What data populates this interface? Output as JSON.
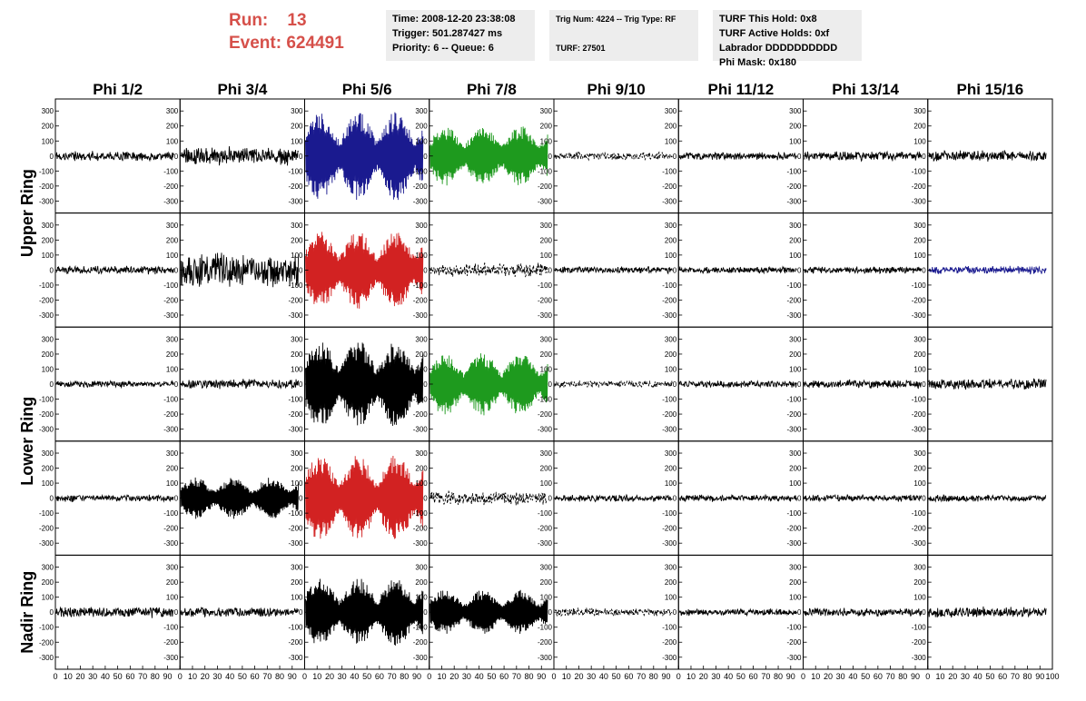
{
  "header": {
    "run_label": "Run:",
    "run_value": "13",
    "event_label": "Event:",
    "event_value": "624491",
    "accent_color": "#d6504a"
  },
  "info_boxes": {
    "time": [
      "Time: 2008-12-20 23:38:08",
      "Trigger: 501.287427 ms",
      "Priority: 6 -- Queue: 6"
    ],
    "trig": [
      "Trig Num: 4224 -- Trig Type: RF",
      "",
      "TURF: 27501"
    ],
    "turf": [
      "TURF This Hold: 0x8",
      "TURF Active Holds: 0xf",
      "Labrador DDDDDDDDDD",
      "Phi Mask: 0x180"
    ]
  },
  "chart_data": {
    "type": "line",
    "title": "",
    "column_labels": [
      "Phi 1/2",
      "Phi 3/4",
      "Phi 5/6",
      "Phi 7/8",
      "Phi 9/10",
      "Phi 11/12",
      "Phi 13/14",
      "Phi 15/16"
    ],
    "ring_labels": [
      {
        "text": "Upper Ring",
        "rows": [
          0,
          1
        ]
      },
      {
        "text": "Lower Ring",
        "rows": [
          2,
          3
        ]
      },
      {
        "text": "Nadir Ring",
        "rows": [
          4,
          4
        ]
      }
    ],
    "ylim": [
      -380,
      380
    ],
    "yticks": [
      -300,
      -200,
      -100,
      0,
      100,
      200,
      300
    ],
    "xlim": [
      0,
      100
    ],
    "xticks": [
      0,
      10,
      20,
      30,
      40,
      50,
      60,
      70,
      80,
      90,
      100
    ],
    "xtick_labels": [
      "0",
      "10",
      "20",
      "30",
      "40",
      "50",
      "60",
      "70",
      "80",
      "90",
      "100"
    ],
    "colors": {
      "black": "#000000",
      "blue": "#1a1a8f",
      "green": "#1e9a1e",
      "red": "#d22222"
    },
    "panels": [
      [
        {
          "color": "black",
          "amp": 35,
          "style": "solid"
        },
        {
          "color": "black",
          "amp": 70,
          "style": "solid"
        },
        {
          "color": "blue",
          "amp": 300,
          "style": "solid"
        },
        {
          "color": "green",
          "amp": 200,
          "style": "solid"
        },
        {
          "color": "black",
          "amp": 30,
          "style": "dashed"
        },
        {
          "color": "black",
          "amp": 28,
          "style": "solid"
        },
        {
          "color": "black",
          "amp": 35,
          "style": "solid"
        },
        {
          "color": "black",
          "amp": 40,
          "style": "solid"
        }
      ],
      [
        {
          "color": "black",
          "amp": 30,
          "style": "solid"
        },
        {
          "color": "black",
          "amp": 120,
          "style": "solid"
        },
        {
          "color": "red",
          "amp": 260,
          "style": "solid"
        },
        {
          "color": "black",
          "amp": 50,
          "style": "dashed"
        },
        {
          "color": "black",
          "amp": 25,
          "style": "solid"
        },
        {
          "color": "black",
          "amp": 25,
          "style": "solid"
        },
        {
          "color": "black",
          "amp": 25,
          "style": "solid"
        },
        {
          "color": "blue",
          "amp": 30,
          "style": "solid"
        }
      ],
      [
        {
          "color": "black",
          "amp": 25,
          "style": "solid"
        },
        {
          "color": "black",
          "amp": 35,
          "style": "solid"
        },
        {
          "color": "black",
          "amp": 290,
          "style": "solid"
        },
        {
          "color": "green",
          "amp": 210,
          "style": "solid"
        },
        {
          "color": "black",
          "amp": 25,
          "style": "dashed"
        },
        {
          "color": "black",
          "amp": 25,
          "style": "solid"
        },
        {
          "color": "black",
          "amp": 30,
          "style": "solid"
        },
        {
          "color": "black",
          "amp": 40,
          "style": "solid"
        }
      ],
      [
        {
          "color": "black",
          "amp": 25,
          "style": "solid"
        },
        {
          "color": "black",
          "amp": 140,
          "style": "solid"
        },
        {
          "color": "red",
          "amp": 290,
          "style": "solid"
        },
        {
          "color": "black",
          "amp": 50,
          "style": "dashed"
        },
        {
          "color": "black",
          "amp": 25,
          "style": "solid"
        },
        {
          "color": "black",
          "amp": 25,
          "style": "solid"
        },
        {
          "color": "black",
          "amp": 25,
          "style": "solid"
        },
        {
          "color": "black",
          "amp": 25,
          "style": "solid"
        }
      ],
      [
        {
          "color": "black",
          "amp": 40,
          "style": "solid"
        },
        {
          "color": "black",
          "amp": 35,
          "style": "solid"
        },
        {
          "color": "black",
          "amp": 230,
          "style": "solid"
        },
        {
          "color": "black",
          "amp": 150,
          "style": "solid"
        },
        {
          "color": "black",
          "amp": 30,
          "style": "dashed"
        },
        {
          "color": "black",
          "amp": 25,
          "style": "solid"
        },
        {
          "color": "black",
          "amp": 30,
          "style": "solid"
        },
        {
          "color": "black",
          "amp": 40,
          "style": "solid"
        }
      ]
    ]
  }
}
